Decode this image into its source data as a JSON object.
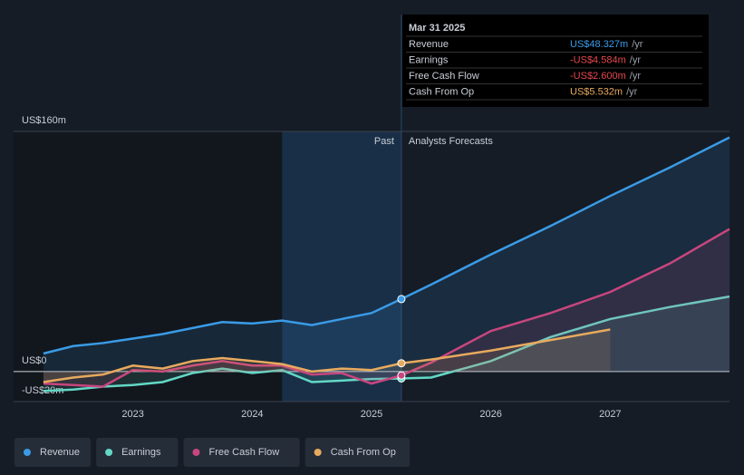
{
  "chart_data": {
    "type": "line",
    "x": [
      2022.25,
      2022.5,
      2022.75,
      2023,
      2023.25,
      2023.5,
      2023.75,
      2024,
      2024.25,
      2024.5,
      2024.75,
      2025,
      2025.25,
      2025.5,
      2026,
      2026.5,
      2027,
      2027.5,
      2028
    ],
    "xlim": [
      2022,
      2028
    ],
    "xticks": [
      2023,
      2024,
      2025,
      2026,
      2027
    ],
    "ylim": [
      -20,
      160
    ],
    "yticks": [
      {
        "value": -20,
        "label": "-US$20m"
      },
      {
        "value": 0,
        "label": "US$0"
      },
      {
        "value": 160,
        "label": "US$160m"
      }
    ],
    "series": [
      {
        "name": "Revenue",
        "color": "#3a9be6",
        "values": [
          12,
          17,
          19,
          22,
          25,
          29,
          33,
          32,
          34,
          31,
          35,
          39,
          48.327,
          58,
          78,
          97,
          117,
          136,
          156
        ]
      },
      {
        "name": "Earnings",
        "color": "#63d8c6",
        "values": [
          -13,
          -12,
          -10,
          -9,
          -7,
          -1,
          2,
          -1,
          1,
          -7,
          -6,
          -5,
          -4.584,
          -4,
          7,
          23,
          35,
          43,
          50
        ]
      },
      {
        "name": "Free Cash Flow",
        "color": "#c8467e",
        "values": [
          -8,
          -9,
          -10,
          1,
          0,
          4,
          7,
          4,
          4,
          -2,
          -1,
          -8,
          -2.6,
          6,
          27,
          39,
          53,
          72,
          95
        ]
      },
      {
        "name": "Cash From Op",
        "color": "#e8aa5e",
        "values": [
          -7,
          -4,
          -2,
          4,
          2,
          7,
          9,
          7,
          5,
          0,
          2,
          1,
          5.532,
          8,
          14,
          21,
          28,
          null,
          null
        ]
      }
    ],
    "past_label": "Past",
    "forecast_label": "Analysts Forecasts",
    "tooltip": {
      "date": "Mar 31 2025",
      "values": [
        48.327,
        -4.584,
        -2.6,
        5.532
      ],
      "value_labels": [
        "US$48.327m",
        "-US$4.584m",
        "-US$2.600m",
        "US$5.532m"
      ],
      "unit": "/yr"
    }
  }
}
